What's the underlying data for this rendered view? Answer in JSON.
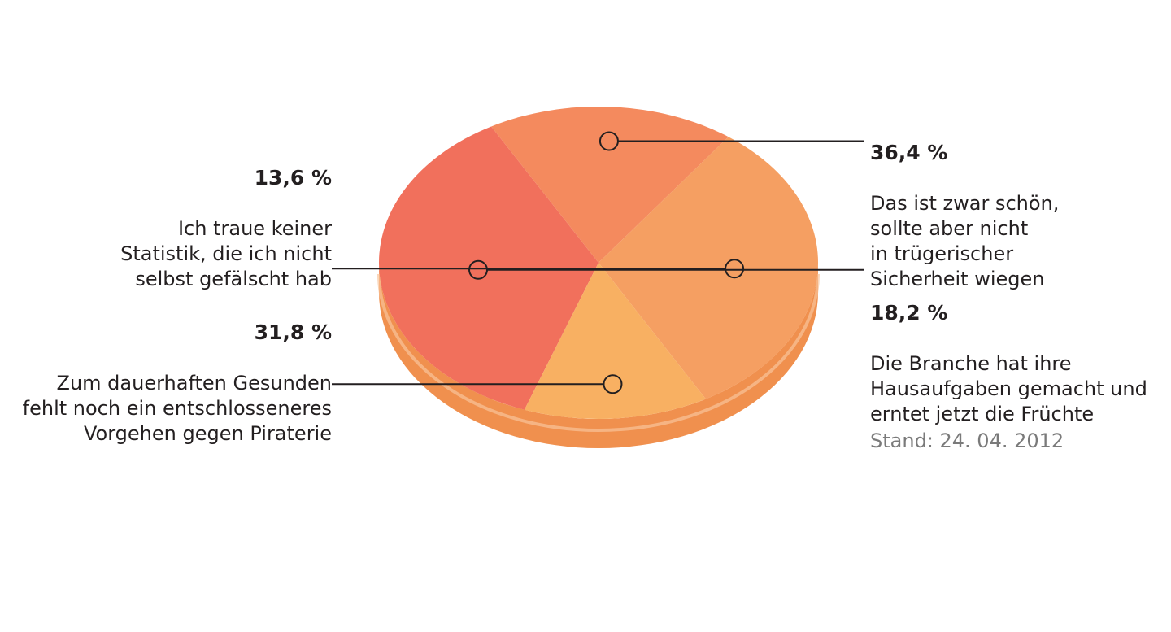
{
  "chart_data": {
    "type": "pie",
    "slices": [
      {
        "label": "Das ist zwar schön,\nsollte aber nicht\nin trügerischer\nSicherheit wiegen",
        "value": 36.4,
        "value_label": "36,4 %",
        "color": "#f1705c"
      },
      {
        "label": "Die Branche hat ihre\nHausaufgaben gemacht und\nerntet jetzt die Früchte",
        "value": 18.2,
        "value_label": "18,2 %",
        "color": "#f48a5e"
      },
      {
        "label": "Zum dauerhaften Gesunden\nfehlt noch ein entschlosseneres\nVorgehen gegen Piraterie",
        "value": 31.8,
        "value_label": "31,8 %",
        "color": "#f59f62"
      },
      {
        "label": "Ich traue keiner\nStatistik, die ich nicht\nselbst gefälscht hab",
        "value": 13.6,
        "value_label": "13,6 %",
        "color": "#f8b062"
      }
    ],
    "side_color": "#f0904e"
  },
  "note": "Stand: 24. 04. 2012"
}
